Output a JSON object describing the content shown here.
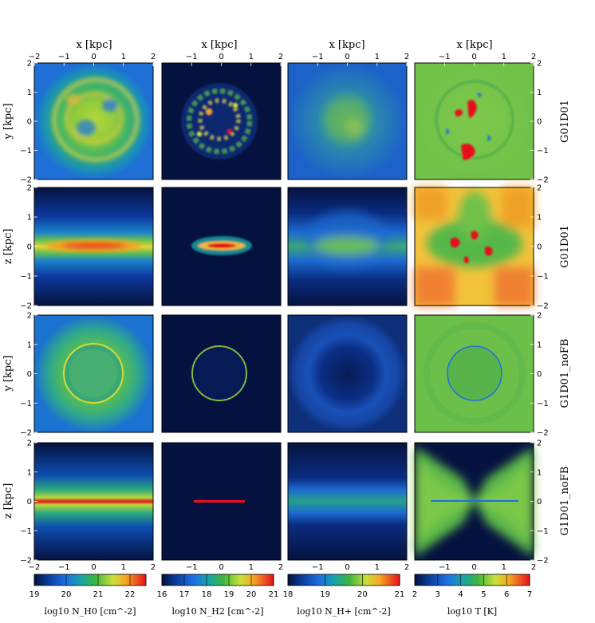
{
  "figure": {
    "top_axis_label": "x [kpc]",
    "x_ticks": [
      "−2",
      "−1",
      "0",
      "1",
      "2"
    ],
    "y_ticks": [
      "2",
      "1",
      "0",
      "−1",
      "−2"
    ],
    "row_left_labels": [
      "y [kpc]",
      "z [kpc]",
      "y [kpc]",
      "z [kpc]"
    ],
    "row_right_labels": [
      "G01D01",
      "G01D01",
      "G1D01_noFB",
      "G1D01_noFB"
    ],
    "bottom_axis_ticks": [
      "−2",
      "−1",
      "0",
      "1",
      "2"
    ]
  },
  "chart_data": {
    "type": "heatmap",
    "description_rows": [
      "face-on",
      "edge-on",
      "face-on",
      "edge-on"
    ],
    "range_kpc": [
      -2,
      2
    ],
    "colorbars": [
      {
        "quantity": "N_H0",
        "label": "log10 N_H0 [cm^-2]",
        "ticks": [
          "19",
          "20",
          "21",
          "22"
        ],
        "range": [
          19,
          22.5
        ]
      },
      {
        "quantity": "N_H2",
        "label": "log10 N_H2 [cm^-2]",
        "ticks": [
          "16",
          "17",
          "18",
          "19",
          "20",
          "21"
        ],
        "range": [
          16,
          21
        ]
      },
      {
        "quantity": "N_H+",
        "label": "log10 N_H+ [cm^-2]",
        "ticks": [
          "18",
          "19",
          "20",
          "21"
        ],
        "range": [
          18,
          21
        ]
      },
      {
        "quantity": "T",
        "label": "log10 T [K]",
        "ticks": [
          "2",
          "3",
          "4",
          "5",
          "6",
          "7"
        ],
        "range": [
          2,
          7
        ]
      }
    ]
  }
}
